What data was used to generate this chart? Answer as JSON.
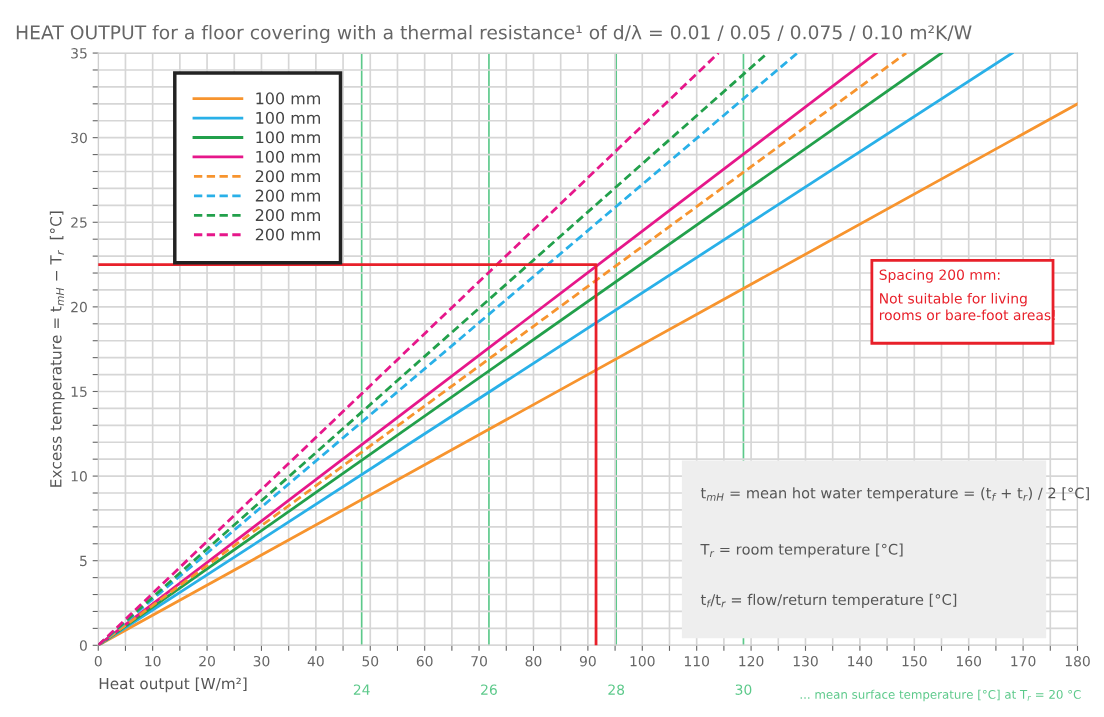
{
  "chart_data": {
    "type": "line",
    "title": "HEAT OUTPUT for a floor covering with a thermal resistance¹ of d/λ = 0.01 / 0.05 / 0.075 / 0.10 m²K/W",
    "xlabel": "Heat output [W/m²]",
    "ylabel": "Excess temperature = t$_{mH}$ − T$_{r}$  [°C]",
    "series": [
      {
        "name": "100 mm",
        "color": "#f7942e",
        "x": [
          0,
          180
        ],
        "values": [
          0,
          32.0
        ],
        "line_style": "solid"
      },
      {
        "name": "100 mm",
        "color": "#29b0e8",
        "x": [
          0,
          168
        ],
        "values": [
          0,
          35
        ],
        "line_style": "solid"
      },
      {
        "name": "100 mm",
        "color": "#22a04b",
        "x": [
          0,
          155
        ],
        "values": [
          0,
          35
        ],
        "line_style": "solid"
      },
      {
        "name": "100 mm",
        "color": "#e6178a",
        "x": [
          0,
          143
        ],
        "values": [
          0,
          35
        ],
        "line_style": "solid"
      },
      {
        "name": "200 mm",
        "color": "#f7942e",
        "x": [
          0,
          148.5
        ],
        "values": [
          0,
          35
        ],
        "line_style": "dashed"
      },
      {
        "name": "200 mm",
        "color": "#29b0e8",
        "x": [
          0,
          128.5
        ],
        "values": [
          0,
          35
        ],
        "line_style": "dashed"
      },
      {
        "name": "200 mm",
        "color": "#22a04b",
        "x": [
          0,
          123
        ],
        "values": [
          0,
          35
        ],
        "line_style": "dashed"
      },
      {
        "name": "200 mm",
        "color": "#e6178a",
        "x": [
          0,
          114
        ],
        "values": [
          0,
          35
        ],
        "line_style": "dashed"
      },
      {
        "color": "#e8202a",
        "x": [
          0,
          91.5,
          91.5
        ],
        "values": [
          22.5,
          22.5,
          0
        ],
        "line_style": "solid"
      }
    ],
    "x2label": "... mean surface temperature [°C] at T$_{r}$ = 20 °C",
    "x2lim": [
      19.86,
      35.25
    ],
    "x2ticks": [
      24,
      26,
      28,
      30
    ],
    "annotations": [
      "Spacing 200 mm:",
      "Not suitable for living\nrooms or bare-foot areas!",
      "t$_{mH}$ = mean hot water temperature = (t$_{f}$ + t$_{r}$) / 2 [°C]",
      "T$_{r}$ = room temperature [°C]",
      "t$_{f}$/t$_{r}$ = flow/return temperature [°C]"
    ],
    "xlim": [
      0,
      180
    ],
    "ylim": [
      0,
      35
    ],
    "xticks": [
      0,
      {
        "value": 5,
        "label": null
      },
      10,
      {
        "value": 15,
        "label": null
      },
      20,
      {
        "value": 25,
        "label": null
      },
      30,
      {
        "value": 35,
        "label": null
      },
      40,
      {
        "value": 45,
        "label": null
      },
      50,
      {
        "value": 55,
        "label": null
      },
      60,
      {
        "value": 65,
        "label": null
      },
      70,
      {
        "value": 75,
        "label": null
      },
      80,
      {
        "value": 85,
        "label": null
      },
      90,
      {
        "value": 95,
        "label": null
      },
      100,
      {
        "value": 105,
        "label": null
      },
      110,
      {
        "value": 115,
        "label": null
      },
      120,
      {
        "value": 125,
        "label": null
      },
      130,
      {
        "value": 135,
        "label": null
      },
      140,
      {
        "value": 145,
        "label": null
      },
      150,
      {
        "value": 155,
        "label": null
      },
      160,
      {
        "value": 165,
        "label": null
      },
      170,
      {
        "value": 175,
        "label": null
      },
      180
    ],
    "yticks": [
      0,
      {
        "value": 1,
        "label": null
      },
      {
        "value": 2,
        "label": null
      },
      {
        "value": 3,
        "label": null
      },
      {
        "value": 4,
        "label": null
      },
      5,
      {
        "value": 6,
        "label": null
      },
      {
        "value": 7,
        "label": null
      },
      {
        "value": 8,
        "label": null
      },
      {
        "value": 9,
        "label": null
      },
      10,
      {
        "value": 11,
        "label": null
      },
      {
        "value": 12,
        "label": null
      },
      {
        "value": 13,
        "label": null
      },
      {
        "value": 14,
        "label": null
      },
      15,
      {
        "value": 16,
        "label": null
      },
      {
        "value": 17,
        "label": null
      },
      {
        "value": 18,
        "label": null
      },
      {
        "value": 19,
        "label": null
      },
      20,
      {
        "value": 21,
        "label": null
      },
      {
        "value": 22,
        "label": null
      },
      {
        "value": 23,
        "label": null
      },
      {
        "value": 24,
        "label": null
      },
      25,
      {
        "value": 26,
        "label": null
      },
      {
        "value": 27,
        "label": null
      },
      {
        "value": 28,
        "label": null
      },
      {
        "value": 29,
        "label": null
      },
      30,
      {
        "value": 31,
        "label": null
      },
      {
        "value": 32,
        "label": null
      },
      {
        "value": 33,
        "label": null
      },
      {
        "value": 34,
        "label": null
      },
      35
    ],
    "grid": true,
    "legend": "top left"
  }
}
